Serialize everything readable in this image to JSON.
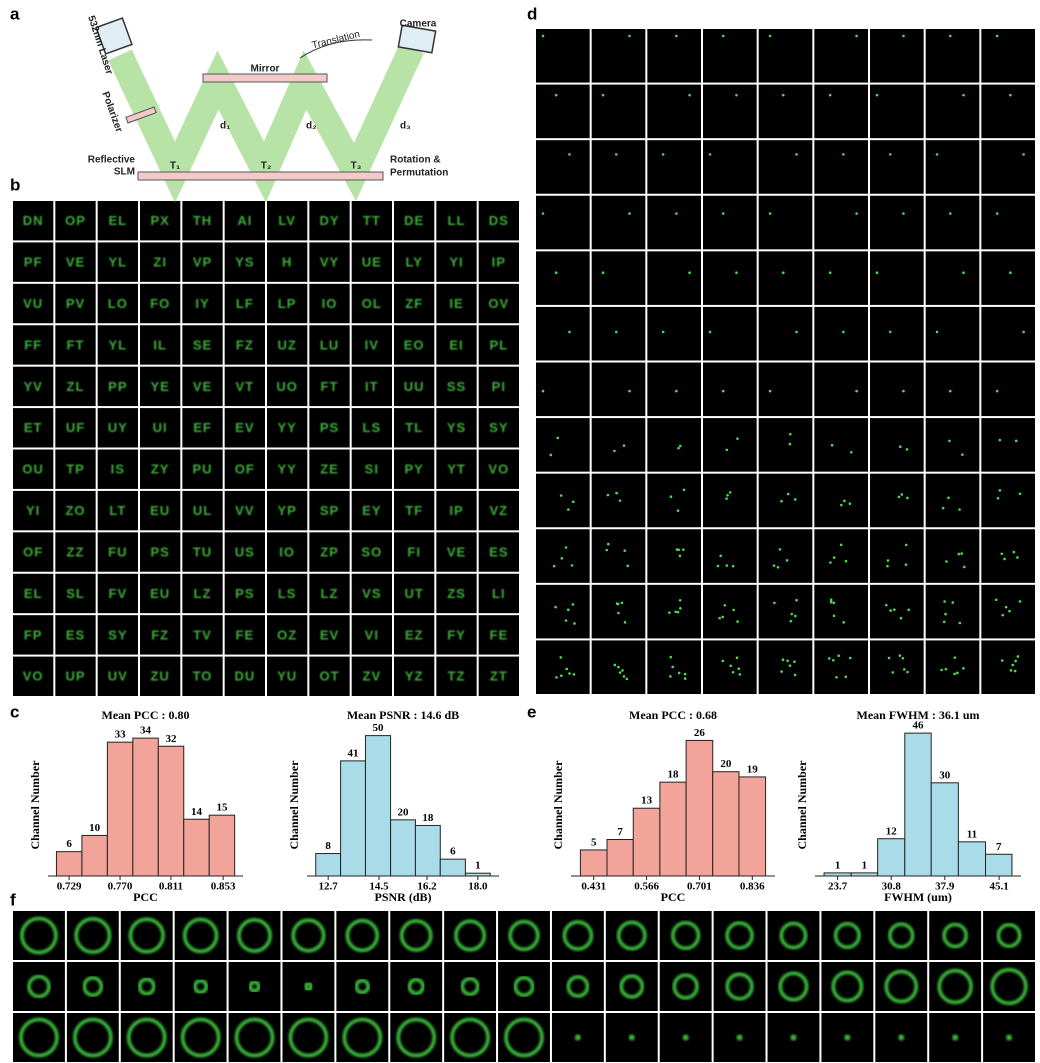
{
  "panel_labels": [
    "a",
    "b",
    "c",
    "d",
    "e",
    "f"
  ],
  "diagram": {
    "laser": "532nm Laser",
    "polarizer": "Polarizer",
    "mirror": "Mirror",
    "translation": "Translation",
    "camera": "Camera",
    "distances": [
      "d₁",
      "d₂",
      "d₃"
    ],
    "points": [
      "T₁",
      "T₂",
      "T₃"
    ],
    "slm": [
      "Reflective",
      "SLM"
    ],
    "rotation": [
      "Rotation &",
      "Permutation"
    ]
  },
  "letter_grid": {
    "rows": [
      [
        "DN",
        "OP",
        "EL",
        "PX",
        "TH",
        "AI",
        "LV",
        "DY",
        "TT",
        "DE",
        "LL",
        "DS"
      ],
      [
        "PF",
        "VE",
        "YL",
        "ZI",
        "VP",
        "YS",
        "H",
        "VY",
        "UE",
        "LY",
        "YI",
        "IP"
      ],
      [
        "VU",
        "PV",
        "LO",
        "FO",
        "IY",
        "LF",
        "LP",
        "IO",
        "OL",
        "ZF",
        "IE",
        "OV"
      ],
      [
        "FF",
        "FT",
        "YL",
        "IL",
        "SE",
        "FZ",
        "UZ",
        "LU",
        "IV",
        "EO",
        "EI",
        "PL"
      ],
      [
        "YV",
        "ZL",
        "PP",
        "YE",
        "VE",
        "VT",
        "UO",
        "FT",
        "IT",
        "UU",
        "SS",
        "PI"
      ],
      [
        "ET",
        "UF",
        "UY",
        "UI",
        "EF",
        "EV",
        "YY",
        "PS",
        "LS",
        "TL",
        "YS",
        "SY"
      ],
      [
        "OU",
        "TP",
        "IS",
        "ZY",
        "PU",
        "OF",
        "YY",
        "ZE",
        "SI",
        "PY",
        "YT",
        "VO"
      ],
      [
        "YI",
        "ZO",
        "LT",
        "EU",
        "UL",
        "VV",
        "YP",
        "SP",
        "EY",
        "TF",
        "IP",
        "VZ"
      ],
      [
        "OF",
        "ZZ",
        "FU",
        "PS",
        "TU",
        "US",
        "IO",
        "ZP",
        "SO",
        "FI",
        "VE",
        "ES"
      ],
      [
        "EL",
        "SL",
        "FV",
        "EU",
        "LZ",
        "PS",
        "LS",
        "LZ",
        "VS",
        "UT",
        "ZS",
        "LI"
      ],
      [
        "FP",
        "ES",
        "SY",
        "FZ",
        "TV",
        "FE",
        "OZ",
        "EV",
        "VI",
        "EZ",
        "FY",
        "FE"
      ],
      [
        "VO",
        "UP",
        "UV",
        "ZU",
        "TO",
        "DU",
        "YU",
        "OT",
        "ZV",
        "YZ",
        "TZ",
        "ZT"
      ]
    ]
  },
  "chart_data": [
    {
      "type": "histogram",
      "title": "Mean PCC : 0.80",
      "xlabel": "PCC",
      "ylabel": "Channel Number",
      "color": "#f2a49a",
      "bins": [
        0.7188,
        0.7393,
        0.7598,
        0.7803,
        0.8008,
        0.8213,
        0.8418,
        0.8623
      ],
      "counts": [
        6,
        10,
        33,
        34,
        32,
        14,
        15
      ],
      "xlim": [
        0.712,
        0.869
      ],
      "ylim": [
        0,
        36
      ],
      "xticks": [
        0.729,
        {
          "value": 0.77,
          "label": "0.770"
        },
        0.811,
        0.853
      ]
    },
    {
      "type": "histogram",
      "title": "Mean PSNR : 14.6 dB",
      "xlabel": "PSNR (dB)",
      "ylabel": "Channel Number",
      "color": "#a9dce8",
      "bins": [
        12.26,
        13.14,
        14.02,
        14.91,
        15.79,
        16.67,
        17.56,
        18.44
      ],
      "counts": [
        8,
        41,
        50,
        20,
        18,
        6,
        1
      ],
      "xlim": [
        11.95,
        18.75
      ],
      "ylim": [
        0,
        52
      ],
      "xticks": [
        12.7,
        14.5,
        16.2,
        {
          "value": 18,
          "label": "18.0"
        }
      ]
    },
    {
      "type": "histogram",
      "title": "Mean PCC : 0.68",
      "xlabel": "PCC",
      "ylabel": "Channel Number",
      "color": "#f2a49a",
      "bins": [
        0.397,
        0.465,
        0.532,
        0.6,
        0.667,
        0.735,
        0.802,
        0.87
      ],
      "counts": [
        5,
        7,
        13,
        18,
        26,
        20,
        19
      ],
      "xlim": [
        0.373,
        0.894
      ],
      "ylim": [
        0,
        28
      ],
      "xticks": [
        0.431,
        0.566,
        0.701,
        0.836
      ]
    },
    {
      "type": "histogram",
      "title": "Mean FWHM : 36.1 um",
      "xlabel": "FWHM (um)",
      "ylabel": "Channel Number",
      "color": "#a9dce8",
      "bins": [
        21.9,
        25.5,
        29.0,
        32.6,
        36.1,
        39.7,
        43.3,
        46.8
      ],
      "counts": [
        1,
        1,
        12,
        46,
        30,
        11,
        7
      ],
      "xlim": [
        20.7,
        48.0
      ],
      "ylim": [
        0,
        47
      ],
      "xticks": [
        23.7,
        30.8,
        37.9,
        45.1
      ]
    }
  ]
}
